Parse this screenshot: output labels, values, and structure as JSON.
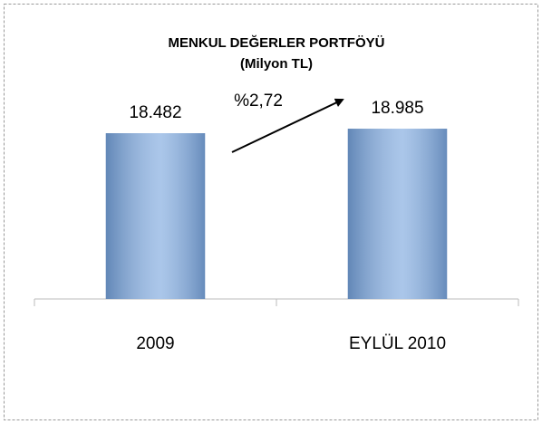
{
  "chart_data": {
    "type": "bar",
    "title": "MENKUL DEĞERLER PORTFÖYÜ",
    "subtitle": "(Milyon TL)",
    "categories": [
      "2009",
      "EYLÜL 2010"
    ],
    "values": [
      18482,
      18985
    ],
    "value_labels": [
      "18.482",
      "18.985"
    ],
    "color": "#8fb4e3",
    "ylim": [
      0,
      20000
    ],
    "annotation": "%2,72"
  }
}
